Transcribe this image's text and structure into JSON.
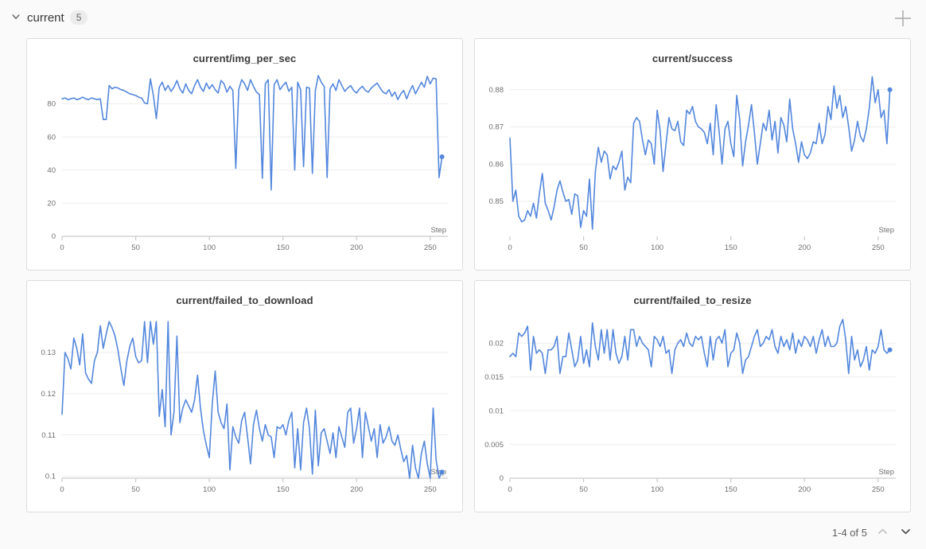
{
  "header": {
    "section_label": "current",
    "badge_count": "5"
  },
  "pagination": {
    "label": "1-4 of 5"
  },
  "colors": {
    "line": "#5387dd",
    "grid": "#ededed",
    "axis": "#c9c9c9",
    "tick_text": "#6e6e6e",
    "panel_border": "#dcdcdc",
    "page_bg": "#fafafa",
    "accent_chevron": "#757575",
    "plus_icon": "#b3b3b3",
    "prev_disabled": "#c4c4c4",
    "next_enabled": "#565656"
  },
  "chart_data": [
    {
      "type": "line",
      "title": "current/img_per_sec",
      "xlabel": "Step",
      "x_start": 0,
      "x_step": 2,
      "xlim": [
        0,
        262
      ],
      "xticks": [
        0,
        50,
        100,
        150,
        200,
        250
      ],
      "ylim": [
        0,
        97
      ],
      "yticks": [
        0,
        20,
        40,
        60,
        80
      ],
      "baseline": true,
      "end_dot": true,
      "values": [
        83,
        83.5,
        82.5,
        83,
        83.5,
        82.5,
        83,
        84,
        83,
        82.5,
        83.5,
        83,
        82.5,
        83,
        70.5,
        70.5,
        91,
        89,
        90,
        89.5,
        88.5,
        88,
        87,
        86,
        85.5,
        85,
        84,
        83.5,
        80.5,
        80,
        95,
        85,
        71,
        90,
        93,
        88,
        91,
        87.5,
        90,
        94,
        89,
        86.5,
        92,
        88,
        86,
        91,
        94.5,
        90,
        87.5,
        92.5,
        89,
        91.5,
        88.5,
        86.5,
        94,
        92,
        87,
        90.5,
        88,
        41,
        88.5,
        94.5,
        92,
        88,
        94.5,
        90.5,
        87,
        85.5,
        35,
        92,
        94.5,
        28,
        91.5,
        94.5,
        88.5,
        91,
        93,
        87.5,
        90,
        40,
        93,
        88.5,
        42,
        90,
        89.5,
        38,
        88,
        97,
        93,
        90.5,
        35.5,
        89,
        92,
        88,
        94.5,
        91,
        87.5,
        89.5,
        91,
        88,
        86.5,
        89,
        90.5,
        88,
        87,
        89.5,
        91,
        92.5,
        89.5,
        87,
        86,
        88.5,
        84.5,
        87,
        82.5,
        86,
        88,
        83,
        87.5,
        91,
        86,
        89.5,
        93,
        90,
        96.5,
        92,
        95.5,
        95,
        35.5,
        48
      ]
    },
    {
      "type": "line",
      "title": "current/success",
      "xlabel": "Step",
      "x_start": 0,
      "x_step": 2,
      "xlim": [
        0,
        262
      ],
      "xticks": [
        0,
        50,
        100,
        150,
        200,
        250
      ],
      "ylim": [
        0.8406,
        0.8838
      ],
      "yticks": [
        0.85,
        0.86,
        0.87,
        0.88
      ],
      "baseline": false,
      "end_dot": true,
      "values": [
        0.867,
        0.85,
        0.853,
        0.846,
        0.8445,
        0.845,
        0.8475,
        0.846,
        0.8495,
        0.8455,
        0.852,
        0.8575,
        0.8495,
        0.8475,
        0.845,
        0.8485,
        0.853,
        0.8555,
        0.8525,
        0.85,
        0.8505,
        0.8465,
        0.852,
        0.8515,
        0.843,
        0.8475,
        0.846,
        0.856,
        0.8425,
        0.858,
        0.8645,
        0.8605,
        0.8635,
        0.8625,
        0.856,
        0.8595,
        0.8585,
        0.8605,
        0.8635,
        0.853,
        0.8565,
        0.855,
        0.871,
        0.8725,
        0.8715,
        0.8665,
        0.8625,
        0.8665,
        0.8655,
        0.86,
        0.8745,
        0.869,
        0.858,
        0.8655,
        0.8725,
        0.8695,
        0.869,
        0.8715,
        0.866,
        0.865,
        0.8745,
        0.8735,
        0.8755,
        0.8715,
        0.87,
        0.8695,
        0.8685,
        0.8655,
        0.871,
        0.8625,
        0.876,
        0.869,
        0.86,
        0.8695,
        0.8715,
        0.8655,
        0.862,
        0.8785,
        0.872,
        0.8595,
        0.866,
        0.8705,
        0.876,
        0.8685,
        0.86,
        0.8655,
        0.871,
        0.869,
        0.8745,
        0.8665,
        0.8715,
        0.863,
        0.8725,
        0.8705,
        0.866,
        0.8775,
        0.8695,
        0.8655,
        0.8605,
        0.866,
        0.8625,
        0.8615,
        0.863,
        0.866,
        0.8655,
        0.871,
        0.8655,
        0.868,
        0.8755,
        0.872,
        0.881,
        0.875,
        0.8785,
        0.8725,
        0.8755,
        0.87,
        0.8635,
        0.8665,
        0.8715,
        0.8675,
        0.866,
        0.8695,
        0.875,
        0.8835,
        0.8765,
        0.88,
        0.8725,
        0.8745,
        0.8655,
        0.88
      ]
    },
    {
      "type": "line",
      "title": "current/failed_to_download",
      "xlabel": "Step",
      "x_start": 0,
      "x_step": 2,
      "xlim": [
        0,
        262
      ],
      "xticks": [
        0,
        50,
        100,
        150,
        200,
        250
      ],
      "ylim": [
        0.0995,
        0.1385
      ],
      "yticks": [
        0.1,
        0.11,
        0.12,
        0.13
      ],
      "baseline": true,
      "end_dot": true,
      "values": [
        0.115,
        0.13,
        0.1285,
        0.126,
        0.1335,
        0.131,
        0.127,
        0.1345,
        0.125,
        0.1235,
        0.1225,
        0.128,
        0.13,
        0.1365,
        0.131,
        0.1345,
        0.1375,
        0.136,
        0.134,
        0.1305,
        0.126,
        0.122,
        0.128,
        0.1315,
        0.1335,
        0.129,
        0.1275,
        0.128,
        0.1375,
        0.1275,
        0.1375,
        0.132,
        0.1375,
        0.1145,
        0.121,
        0.112,
        0.1375,
        0.11,
        0.1155,
        0.134,
        0.113,
        0.1165,
        0.1185,
        0.117,
        0.1155,
        0.1185,
        0.1245,
        0.1165,
        0.111,
        0.1075,
        0.1045,
        0.1175,
        0.1255,
        0.1155,
        0.113,
        0.1115,
        0.1175,
        0.1015,
        0.112,
        0.1095,
        0.108,
        0.1135,
        0.1155,
        0.1095,
        0.103,
        0.1125,
        0.116,
        0.1115,
        0.1085,
        0.1125,
        0.11,
        0.1095,
        0.1045,
        0.112,
        0.1115,
        0.1125,
        0.11,
        0.1135,
        0.1155,
        0.102,
        0.1115,
        0.1015,
        0.113,
        0.1165,
        0.1115,
        0.1005,
        0.116,
        0.1025,
        0.1105,
        0.1115,
        0.1085,
        0.1055,
        0.1105,
        0.1045,
        0.112,
        0.1095,
        0.107,
        0.1155,
        0.1165,
        0.108,
        0.1115,
        0.1165,
        0.1045,
        0.1155,
        0.112,
        0.1085,
        0.1115,
        0.1045,
        0.1125,
        0.108,
        0.1095,
        0.112,
        0.1085,
        0.1075,
        0.11,
        0.1065,
        0.1035,
        0.105,
        0.0995,
        0.1075,
        0.102,
        0.0995,
        0.1055,
        0.1085,
        0.103,
        0.0995,
        0.1165,
        0.104,
        0.0995,
        0.101
      ]
    },
    {
      "type": "line",
      "title": "current/failed_to_resize",
      "xlabel": "Step",
      "x_start": 0,
      "x_step": 2,
      "xlim": [
        0,
        262
      ],
      "xticks": [
        0,
        50,
        100,
        150,
        200,
        250
      ],
      "ylim": [
        0,
        0.0238
      ],
      "yticks": [
        0,
        0.005,
        0.01,
        0.015,
        0.02
      ],
      "baseline": true,
      "end_dot": true,
      "values": [
        0.018,
        0.0185,
        0.018,
        0.0215,
        0.021,
        0.0215,
        0.0225,
        0.016,
        0.021,
        0.0185,
        0.019,
        0.0185,
        0.0155,
        0.019,
        0.019,
        0.0195,
        0.021,
        0.0155,
        0.018,
        0.018,
        0.0215,
        0.019,
        0.0165,
        0.0175,
        0.021,
        0.017,
        0.019,
        0.0165,
        0.023,
        0.0195,
        0.0175,
        0.022,
        0.0185,
        0.022,
        0.0175,
        0.022,
        0.0185,
        0.017,
        0.018,
        0.021,
        0.0175,
        0.022,
        0.022,
        0.0195,
        0.021,
        0.02,
        0.0195,
        0.019,
        0.0165,
        0.021,
        0.0205,
        0.0195,
        0.021,
        0.0185,
        0.019,
        0.0155,
        0.019,
        0.02,
        0.0205,
        0.0195,
        0.0215,
        0.02,
        0.0195,
        0.021,
        0.0205,
        0.021,
        0.0185,
        0.0165,
        0.021,
        0.0175,
        0.0205,
        0.021,
        0.02,
        0.022,
        0.0165,
        0.0185,
        0.019,
        0.0215,
        0.02,
        0.0155,
        0.0175,
        0.018,
        0.0195,
        0.021,
        0.022,
        0.0195,
        0.02,
        0.021,
        0.0205,
        0.022,
        0.0195,
        0.0185,
        0.021,
        0.0195,
        0.0205,
        0.019,
        0.0215,
        0.0185,
        0.0205,
        0.0195,
        0.021,
        0.0205,
        0.0195,
        0.021,
        0.0185,
        0.0205,
        0.022,
        0.0195,
        0.021,
        0.0195,
        0.0195,
        0.02,
        0.0225,
        0.0235,
        0.0205,
        0.0155,
        0.021,
        0.0175,
        0.019,
        0.0165,
        0.0175,
        0.0195,
        0.016,
        0.019,
        0.0185,
        0.0195,
        0.022,
        0.019,
        0.0185,
        0.019
      ]
    }
  ]
}
